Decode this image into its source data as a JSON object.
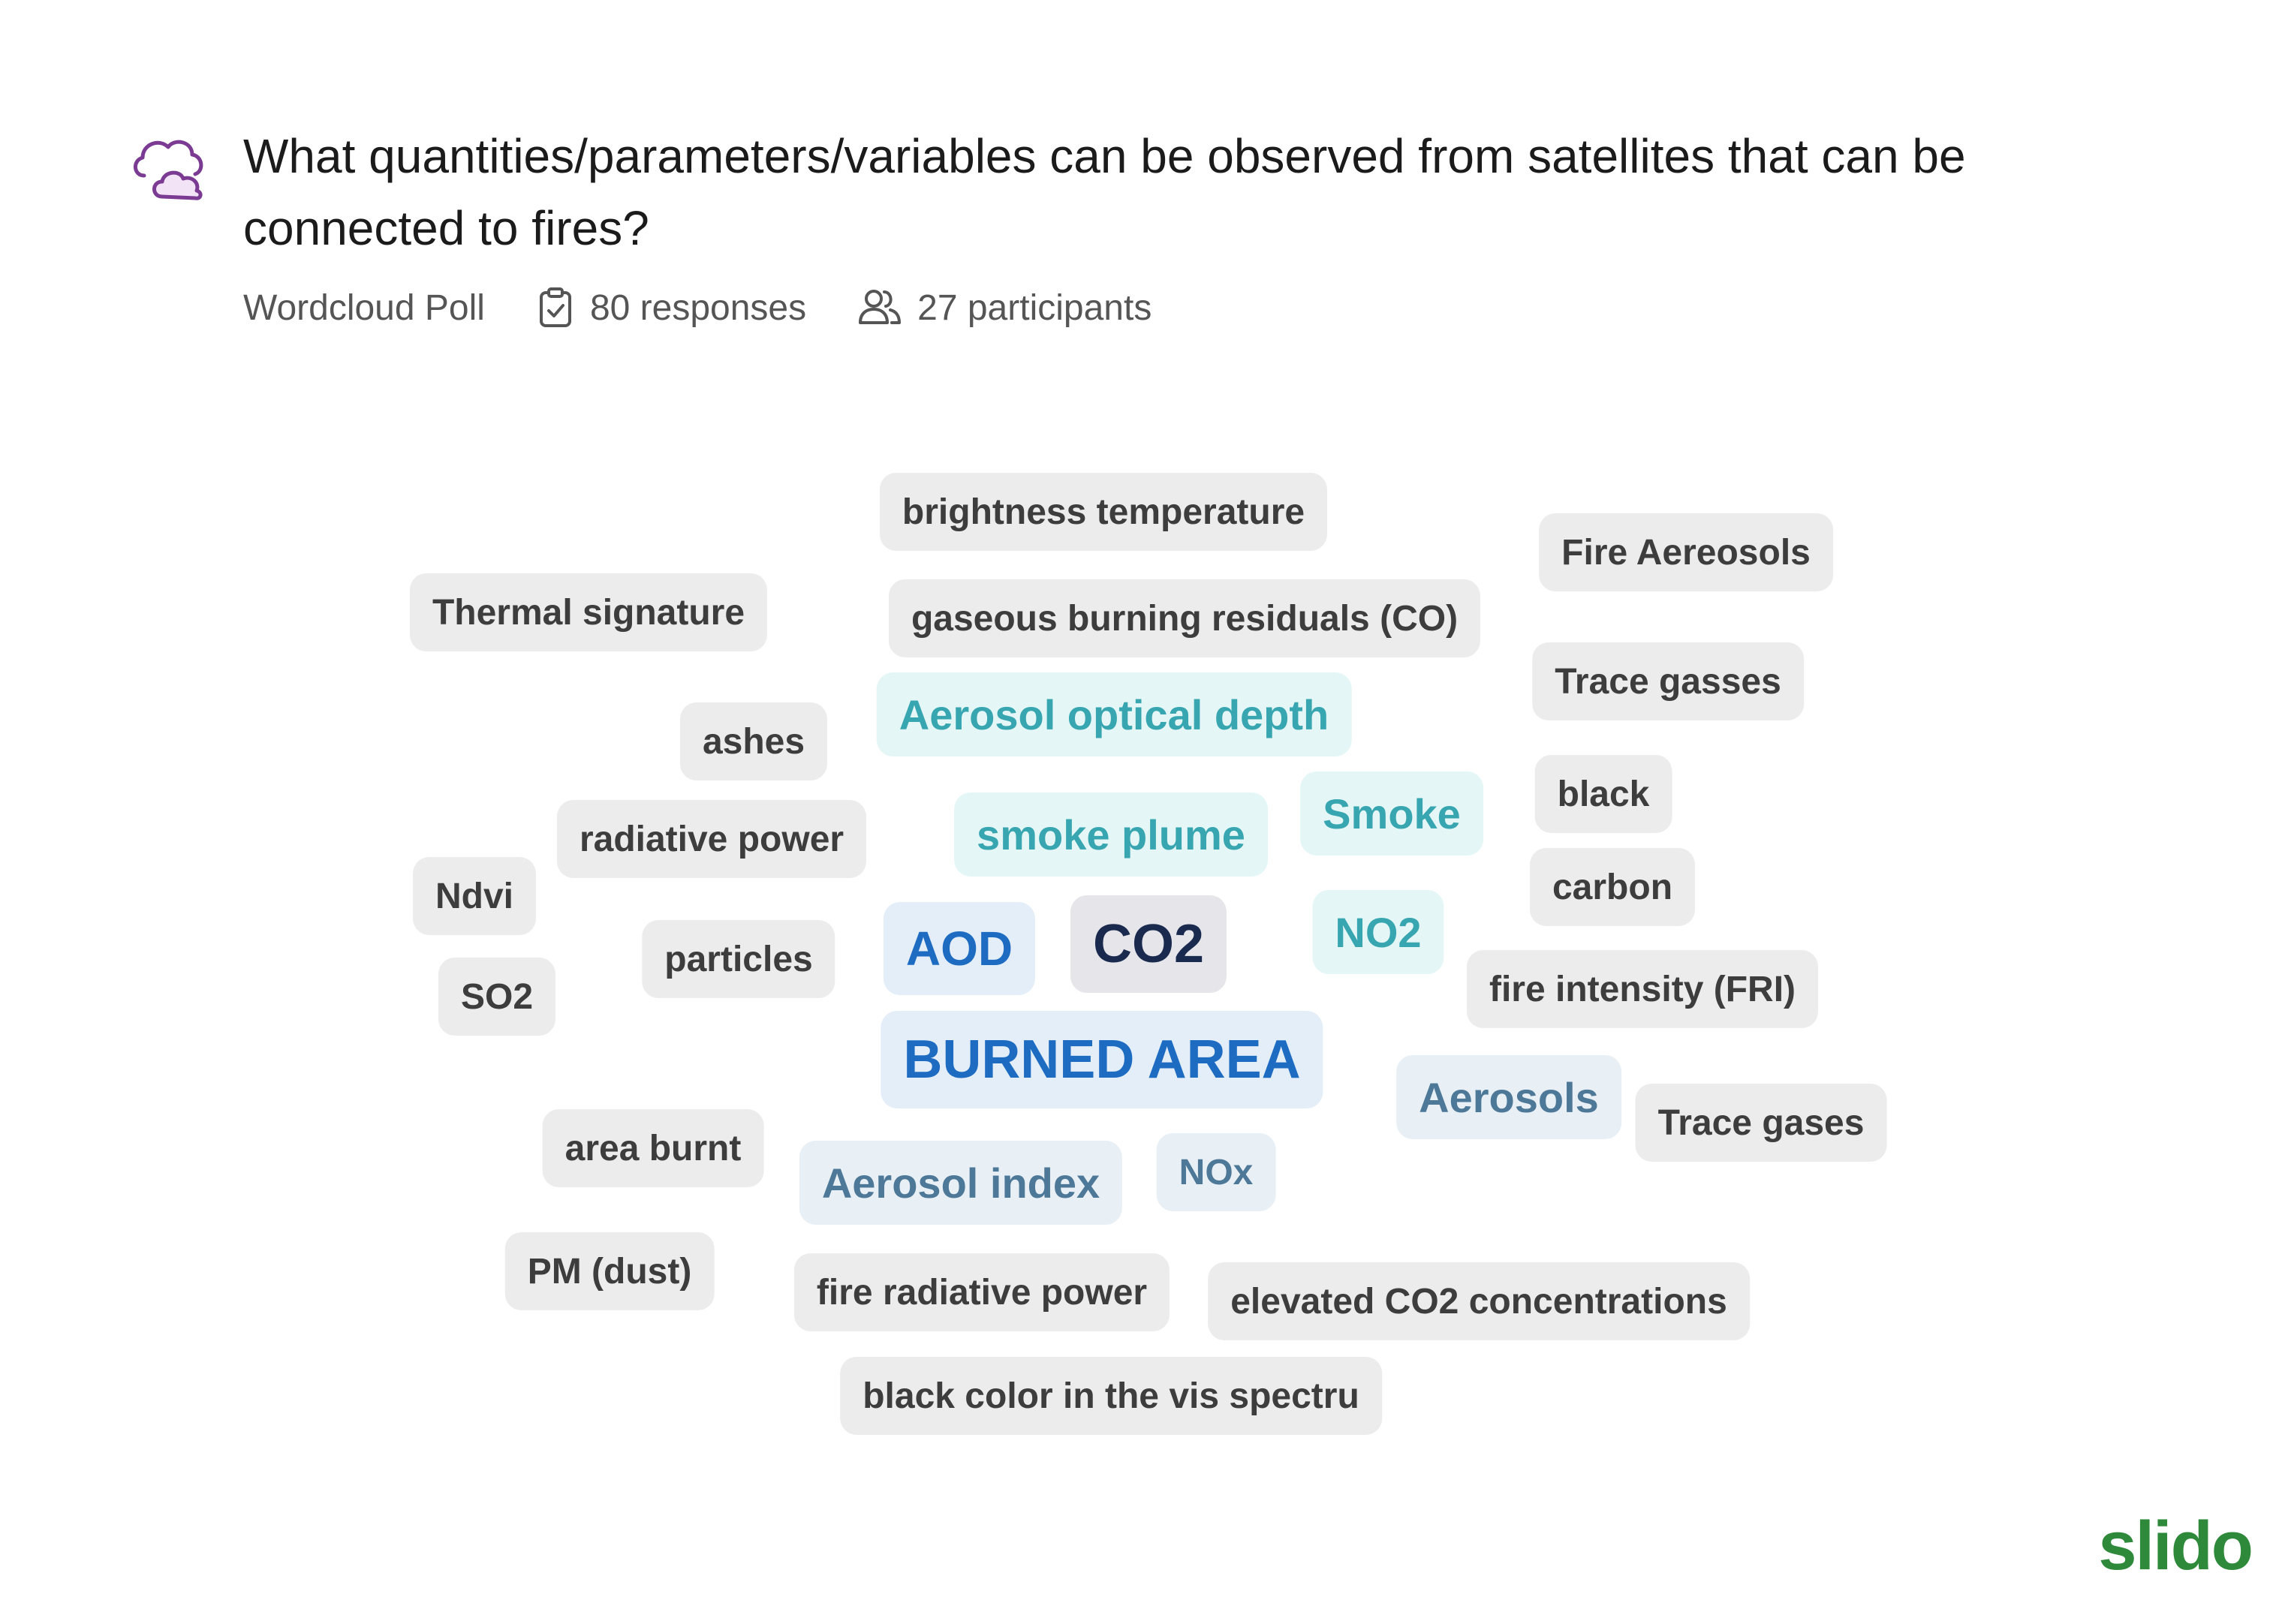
{
  "question": {
    "title": "What quantities/parameters/variables can be observed from satellites that can be connected to fires?",
    "type_label": "Wordcloud Poll",
    "responses": "80 responses",
    "participants": "27 participants"
  },
  "icons": {
    "question_type": "cloud-icon",
    "responses": "clipboard-check-icon",
    "participants": "users-icon"
  },
  "wordcloud": {
    "words": [
      "brightness temperature",
      "Fire Aereosols",
      "Thermal signature",
      "gaseous burning residuals (CO)",
      "Trace gasses",
      "ashes",
      "Aerosol optical depth",
      "black",
      "Smoke",
      "radiative power",
      "smoke plume",
      "carbon",
      "Ndvi",
      "NO2",
      "particles",
      "AOD",
      "CO2",
      "fire intensity (FRI)",
      "SO2",
      "BURNED AREA",
      "Aerosols",
      "Trace gases",
      "area burnt",
      "Aerosol index",
      "NOx",
      "PM (dust)",
      "fire radiative power",
      "elevated CO2 concentrations",
      "black color in the vis spectru"
    ]
  },
  "colors": {
    "chip_grey": "#ececec",
    "text_grey": "#3d3d3d",
    "teal": "#37a6b0",
    "slate": "#4e7898",
    "blue": "#1e6cc2",
    "navy": "#1a2a4e",
    "brand": "#2e8a3a",
    "icon_purple": "#7b3b93"
  },
  "brand": {
    "logo_text": "slido"
  }
}
